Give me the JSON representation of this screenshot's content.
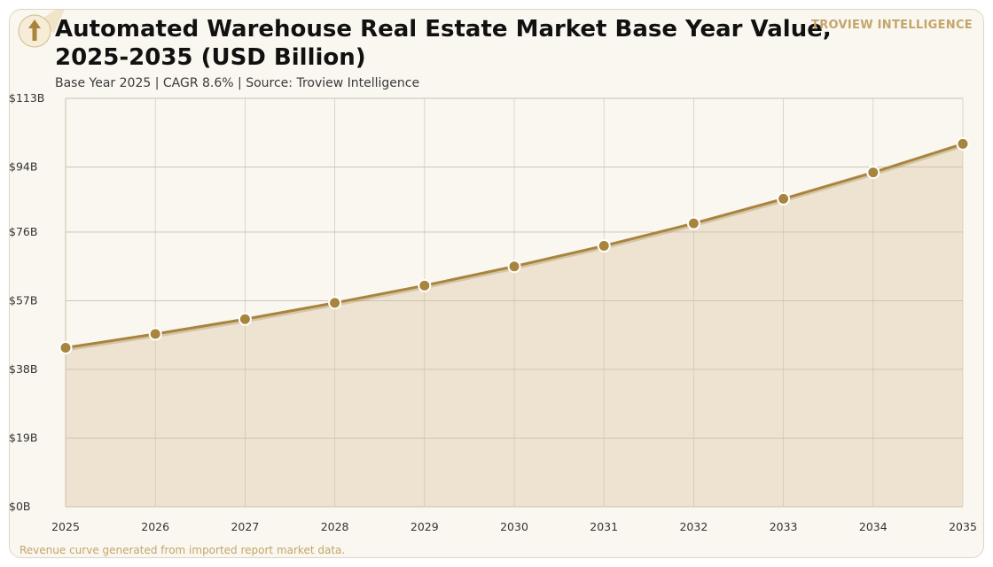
{
  "header": {
    "title_line1": "Automated Warehouse Real Estate Market Base Year Value,",
    "title_line2": "2025-2035 (USD Billion)",
    "subtitle": "Base Year 2025 | CAGR 8.6% | Source: Troview Intelligence",
    "brand": "TROVIEW INTELLIGENCE"
  },
  "footer": {
    "note": "Revenue curve generated from imported report market data."
  },
  "logo": {
    "icon": "arrow-up-icon"
  },
  "colors": {
    "background": "#faf7f0",
    "line": "#a8843c",
    "marker": "#a8843c",
    "area": "#ede3d0",
    "grid": "#c9c0ae",
    "accent": "#c4a56a"
  },
  "chart_data": {
    "type": "area",
    "x": [
      "2025",
      "2026",
      "2027",
      "2028",
      "2029",
      "2030",
      "2031",
      "2032",
      "2033",
      "2034",
      "2035"
    ],
    "series": [
      {
        "values": [
          44.0,
          47.8,
          51.9,
          56.4,
          61.2,
          66.5,
          72.2,
          78.4,
          85.2,
          92.5,
          100.4
        ]
      }
    ],
    "y_ticks": [
      0,
      19,
      38,
      57,
      76,
      94,
      113
    ],
    "y_tick_labels": [
      "$0B",
      "$19B",
      "$38B",
      "$57B",
      "$76B",
      "$94B",
      "$113B"
    ],
    "ylim": [
      0,
      113
    ],
    "grid": true,
    "markers": true
  }
}
